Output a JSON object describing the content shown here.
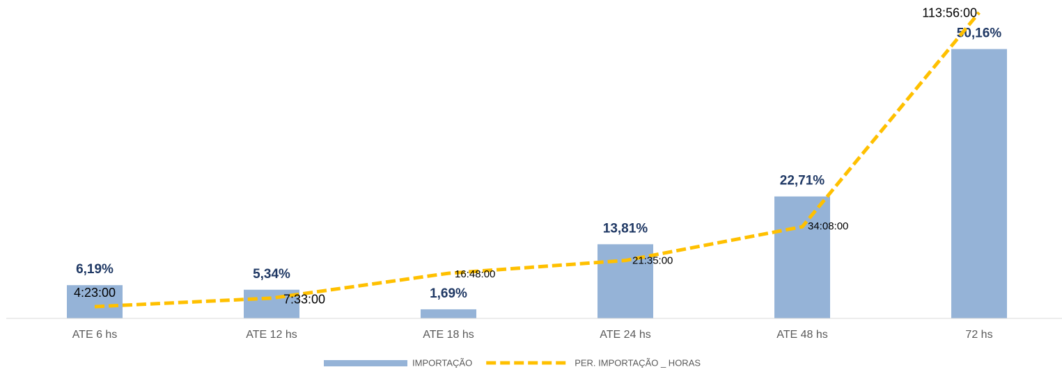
{
  "chart_data": {
    "type": "bar",
    "categories": [
      "ATE 6 hs",
      "ATE 12 hs",
      "ATE 18 hs",
      "ATE 24 hs",
      "ATE 48 hs",
      "72 hs"
    ],
    "series": [
      {
        "name": "IMPORTAÇÃO",
        "type": "bar",
        "color": "#95b3d7",
        "values": [
          6.19,
          5.34,
          1.69,
          13.81,
          22.71,
          50.16
        ],
        "value_labels": [
          "6,19%",
          "5,34%",
          "1,69%",
          "13,81%",
          "22,71%",
          "50,16%"
        ]
      },
      {
        "name": "PER. IMPORTAÇÃO _ HORAS",
        "type": "line",
        "axis": "y2",
        "color": "#ffc000",
        "values": [
          4.3833,
          7.55,
          16.8,
          21.5833,
          34.1333,
          113.9333
        ],
        "value_labels": [
          "4:23:00",
          "7:33:00",
          "16:48:00",
          "21:35:00",
          "34:08:00",
          "113:56:00"
        ]
      }
    ],
    "ylim": [
      0,
      58
    ],
    "y2lim": [
      0,
      116
    ],
    "legend": "bottom"
  }
}
